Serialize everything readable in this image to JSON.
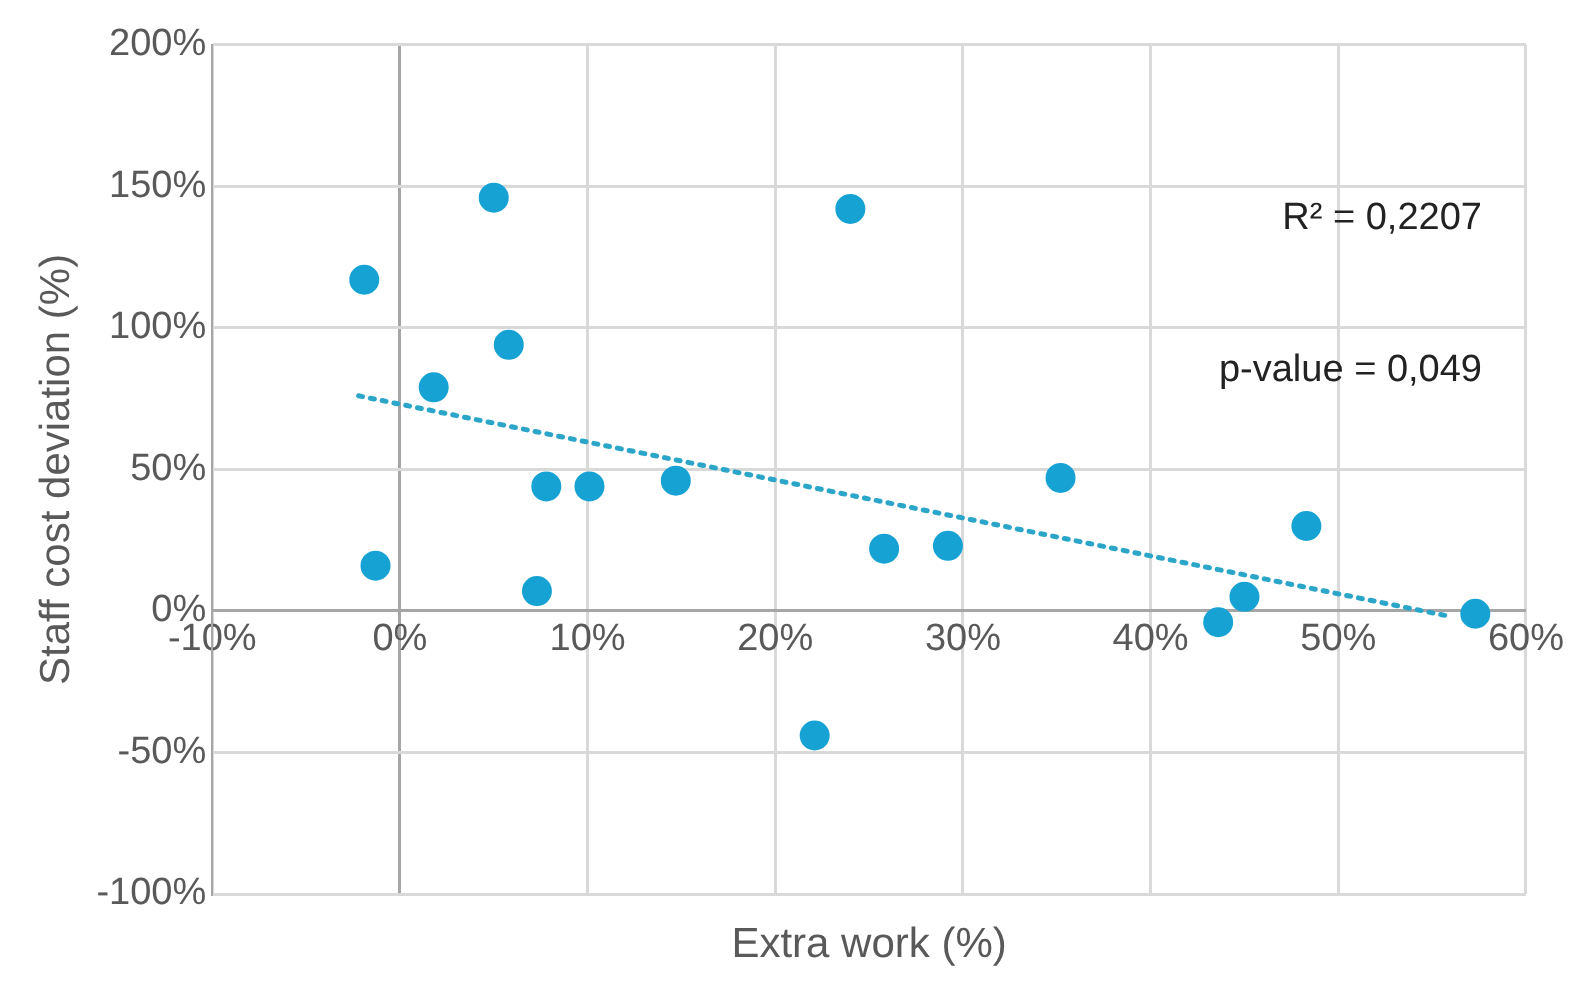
{
  "chart_data": {
    "type": "scatter",
    "xlabel": "Extra work (%)",
    "ylabel": "Staff cost deviation (%)",
    "xlim": [
      -10,
      60
    ],
    "xticks": [
      {
        "value": -10,
        "label": "-10%"
      },
      {
        "value": 0,
        "label": "0%"
      },
      {
        "value": 10,
        "label": "10%"
      },
      {
        "value": 20,
        "label": "20%"
      },
      {
        "value": 30,
        "label": "30%"
      },
      {
        "value": 40,
        "label": "40%"
      },
      {
        "value": 50,
        "label": "50%"
      },
      {
        "value": 60,
        "label": "60%"
      }
    ],
    "ylim": [
      -100,
      200
    ],
    "yticks": [
      {
        "value": -100,
        "label": "-100%"
      },
      {
        "value": -50,
        "label": "-50%"
      },
      {
        "value": 0,
        "label": "0%"
      },
      {
        "value": 50,
        "label": "50%"
      },
      {
        "value": 100,
        "label": "100%"
      },
      {
        "value": 150,
        "label": "150%"
      },
      {
        "value": 200,
        "label": "200%"
      }
    ],
    "grid": true,
    "legend": false,
    "annotations": [
      "R² = 0,2207",
      "p-value = 0,049"
    ],
    "series": [
      {
        "marker": "circle",
        "color": "#17a2d4",
        "x": [
          -1.9,
          -1.3,
          1.8,
          5.0,
          5.8,
          7.3,
          7.8,
          10.1,
          14.7,
          22.1,
          24.0,
          25.8,
          29.2,
          35.2,
          43.6,
          45.0,
          48.3,
          57.3
        ],
        "values": [
          117,
          16,
          79,
          146,
          94,
          7,
          44,
          44,
          46,
          -44,
          142,
          22,
          23,
          47,
          -4,
          5,
          30,
          -1
        ]
      },
      {
        "type": "line",
        "marker": "none",
        "line_style": "dotted",
        "color": "#2ba6c8",
        "x": [
          -2.2,
          56
        ],
        "values": [
          76,
          -2
        ]
      }
    ]
  }
}
